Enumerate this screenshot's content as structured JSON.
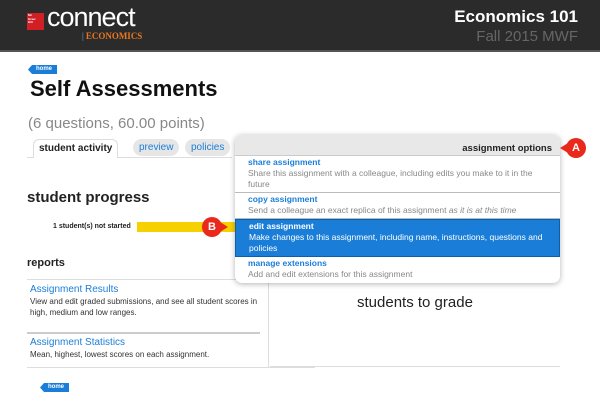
{
  "header": {
    "logo_brand": "McGraw-Hill Education",
    "logo_text": "connect",
    "logo_product": "ECONOMICS",
    "course": "Economics 101",
    "term": "Fall 2015 MWF"
  },
  "breadcrumb": {
    "home": "home"
  },
  "page": {
    "title": "Self Assessments",
    "subtitle": "(6 questions, 60.00 points)"
  },
  "tabs": [
    {
      "label": "student activity",
      "active": true
    },
    {
      "label": "preview"
    },
    {
      "label": "policies"
    }
  ],
  "menu": {
    "title": "assignment options",
    "items": [
      {
        "title": "share assignment",
        "desc": "Share this assignment with a colleague, including edits you make to it in the future"
      },
      {
        "title": "copy assignment",
        "desc": "Send a colleague an exact replica of this assignment ",
        "desc_em": "as it is at this time"
      },
      {
        "title": "edit assignment",
        "desc": "Make changes to this assignment, including name, instructions, questions and policies",
        "selected": true
      },
      {
        "title": "manage extensions",
        "desc": "Add and edit extensions for this assignment"
      }
    ]
  },
  "markers": {
    "a": "A",
    "b": "B"
  },
  "progress": {
    "heading": "student progress",
    "not_started": "1 student(s) not started",
    "bar_color": "#f7d000"
  },
  "reports": {
    "heading": "reports",
    "items": [
      {
        "title": "Assignment Results",
        "desc": "View and edit graded submissions, and see all student scores in high, medium and low ranges."
      },
      {
        "title": "Assignment Statistics",
        "desc": "Mean, highest, lowest scores on each assignment."
      }
    ]
  },
  "grading": {
    "label": "students to grade"
  },
  "colors": {
    "accent": "#1a7ed8",
    "marker": "#e8291c",
    "header": "#2b2b2b",
    "brand": "#e87722"
  }
}
